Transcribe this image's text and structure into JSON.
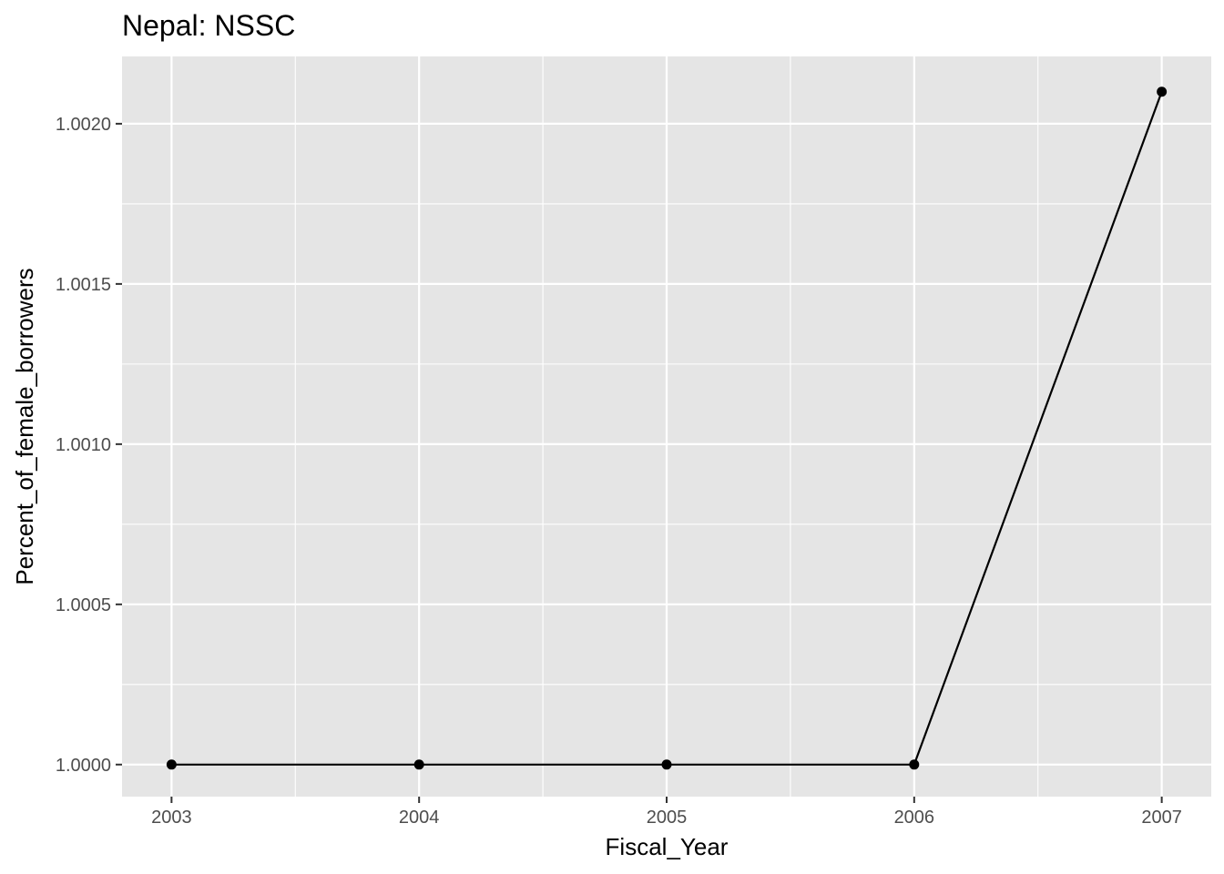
{
  "chart_data": {
    "type": "line",
    "title": "Nepal:  NSSC",
    "xlabel": "Fiscal_Year",
    "ylabel": "Percent_of_female_borrowers",
    "x": [
      2003,
      2004,
      2005,
      2006,
      2007
    ],
    "series": [
      {
        "values": [
          1.0,
          1.0,
          1.0,
          1.0,
          1.0021
        ]
      }
    ],
    "x_ticks": [
      "2003",
      "2004",
      "2005",
      "2006",
      "2007"
    ],
    "y_ticks": [
      "1.0000",
      "1.0005",
      "1.0010",
      "1.0015",
      "1.0020"
    ],
    "y_tick_values": [
      1.0,
      1.0005,
      1.001,
      1.0015,
      1.002
    ],
    "xlim": [
      2002.8,
      2007.2
    ],
    "ylim": [
      0.9999,
      1.00221
    ],
    "grid": true,
    "legend": "none",
    "colors": {
      "panel": "#e5e5e5",
      "grid": "#ffffff",
      "line": "#000000",
      "point": "#000000"
    }
  }
}
